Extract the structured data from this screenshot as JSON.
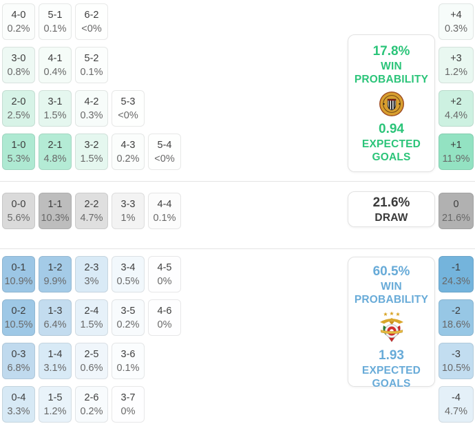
{
  "chart_data": {
    "type": "heatmap",
    "title": "Correct score probability matrix",
    "sections": {
      "home_win": {
        "rows": [
          [
            {
              "score": "4-0",
              "pct": "0.2%",
              "bg": "#fbfdfc"
            },
            {
              "score": "5-1",
              "pct": "0.1%",
              "bg": "#fcfefd"
            },
            {
              "score": "6-2",
              "pct": "<0%",
              "bg": "#fefffe"
            }
          ],
          [
            {
              "score": "3-0",
              "pct": "0.8%",
              "bg": "#eef9f4"
            },
            {
              "score": "4-1",
              "pct": "0.4%",
              "bg": "#f5fcf8"
            },
            {
              "score": "5-2",
              "pct": "0.1%",
              "bg": "#fcfefd"
            }
          ],
          [
            {
              "score": "2-0",
              "pct": "2.5%",
              "bg": "#d7f3e7"
            },
            {
              "score": "3-1",
              "pct": "1.5%",
              "bg": "#e5f7ef"
            },
            {
              "score": "4-2",
              "pct": "0.3%",
              "bg": "#f7fcfa"
            },
            {
              "score": "5-3",
              "pct": "<0%",
              "bg": "#fefffe"
            }
          ],
          [
            {
              "score": "1-0",
              "pct": "5.3%",
              "bg": "#aee9d2"
            },
            {
              "score": "2-1",
              "pct": "4.8%",
              "bg": "#b4ebd5"
            },
            {
              "score": "3-2",
              "pct": "1.5%",
              "bg": "#e5f7ef"
            },
            {
              "score": "4-3",
              "pct": "0.2%",
              "bg": "#fbfdfc"
            },
            {
              "score": "5-4",
              "pct": "<0%",
              "bg": "#fefffe"
            }
          ]
        ]
      },
      "draw": {
        "rows": [
          [
            {
              "score": "0-0",
              "pct": "5.6%",
              "bg": "#dadada"
            },
            {
              "score": "1-1",
              "pct": "10.3%",
              "bg": "#bdbdbd"
            },
            {
              "score": "2-2",
              "pct": "4.7%",
              "bg": "#dfdfdf"
            },
            {
              "score": "3-3",
              "pct": "1%",
              "bg": "#f3f3f3"
            },
            {
              "score": "4-4",
              "pct": "0.1%",
              "bg": "#fcfcfc"
            }
          ]
        ]
      },
      "away_win": {
        "rows": [
          [
            {
              "score": "0-1",
              "pct": "10.9%",
              "bg": "#9cc6e5"
            },
            {
              "score": "1-2",
              "pct": "9.9%",
              "bg": "#a4cbe7"
            },
            {
              "score": "2-3",
              "pct": "3%",
              "bg": "#d9eaf6"
            },
            {
              "score": "3-4",
              "pct": "0.5%",
              "bg": "#f2f8fc"
            },
            {
              "score": "4-5",
              "pct": "0%",
              "bg": "#fefeff"
            }
          ],
          [
            {
              "score": "0-2",
              "pct": "10.5%",
              "bg": "#9ec8e6"
            },
            {
              "score": "1-3",
              "pct": "6.4%",
              "bg": "#c3dcef"
            },
            {
              "score": "2-4",
              "pct": "1.5%",
              "bg": "#e6f1f9"
            },
            {
              "score": "3-5",
              "pct": "0.2%",
              "bg": "#f8fbfd"
            },
            {
              "score": "4-6",
              "pct": "0%",
              "bg": "#fefeff"
            }
          ],
          [
            {
              "score": "0-3",
              "pct": "6.8%",
              "bg": "#c0daee"
            },
            {
              "score": "1-4",
              "pct": "3.1%",
              "bg": "#d8eaf6"
            },
            {
              "score": "2-5",
              "pct": "0.6%",
              "bg": "#f0f6fb"
            },
            {
              "score": "3-6",
              "pct": "0.1%",
              "bg": "#fbfdfe"
            }
          ],
          [
            {
              "score": "0-4",
              "pct": "3.3%",
              "bg": "#d7e9f5"
            },
            {
              "score": "1-5",
              "pct": "1.2%",
              "bg": "#e9f3fa"
            },
            {
              "score": "2-6",
              "pct": "0.2%",
              "bg": "#f8fbfd"
            },
            {
              "score": "3-7",
              "pct": "0%",
              "bg": "#fefeff"
            }
          ]
        ]
      }
    },
    "goal_difference": {
      "home_win": [
        {
          "label": "+4",
          "pct": "0.3%",
          "bg": "#f7fcfa"
        },
        {
          "label": "+3",
          "pct": "1.2%",
          "bg": "#e9f8f1"
        },
        {
          "label": "+2",
          "pct": "4.4%",
          "bg": "#cdf1e1"
        },
        {
          "label": "+1",
          "pct": "11.9%",
          "bg": "#93e2c2"
        }
      ],
      "draw": [
        {
          "label": "0",
          "pct": "21.6%",
          "bg": "#b1b1b1"
        }
      ],
      "away_win": [
        {
          "label": "-1",
          "pct": "24.3%",
          "bg": "#74b4dc"
        },
        {
          "label": "-2",
          "pct": "18.6%",
          "bg": "#97c7e5"
        },
        {
          "label": "-3",
          "pct": "10.5%",
          "bg": "#c2ddf0"
        },
        {
          "label": "-4",
          "pct": "4.7%",
          "bg": "#e4f0f8"
        }
      ]
    }
  },
  "panels": {
    "home": {
      "win_probability": "17.8%",
      "win_label_line1": "WIN",
      "win_label_line2": "PROBABILITY",
      "expected_goals": "0.94",
      "eg_label_line1": "EXPECTED",
      "eg_label_line2": "GOALS",
      "accent": "#2bc479",
      "team_logo": "nacional-crest"
    },
    "draw": {
      "probability": "21.6%",
      "label": "DRAW",
      "text_color": "#3a3a3a"
    },
    "away": {
      "win_probability": "60.5%",
      "win_label_line1": "WIN",
      "win_label_line2": "PROBABILITY",
      "expected_goals": "1.93",
      "eg_label_line1": "EXPECTED",
      "eg_label_line2": "GOALS",
      "accent": "#68abd8",
      "team_logo": "benfica-crest"
    }
  }
}
